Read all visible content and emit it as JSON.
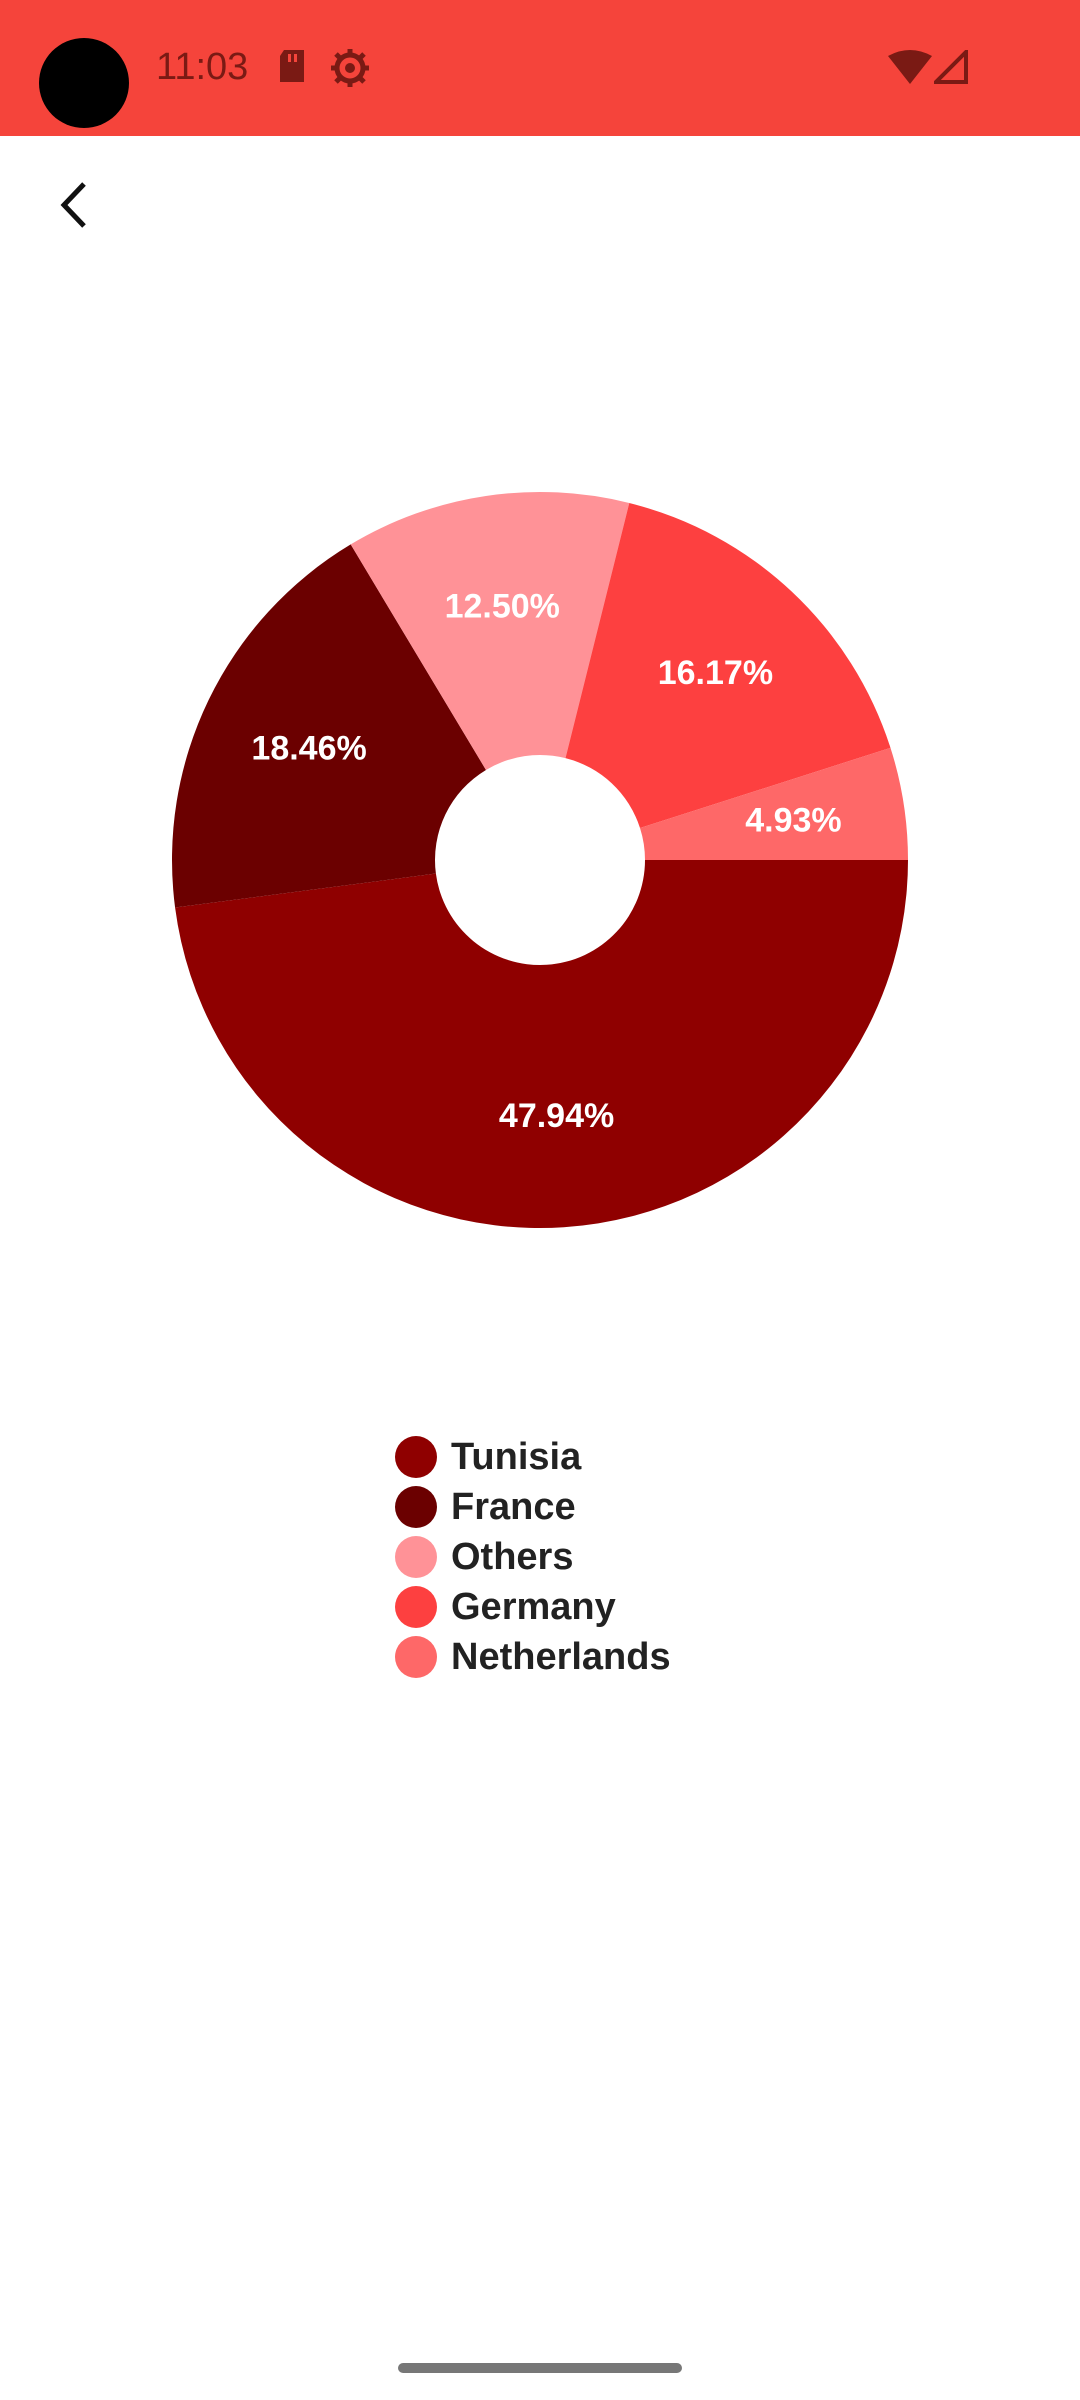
{
  "status_bar": {
    "time": "11:03",
    "color": "#f5443b",
    "icons": [
      "camera-cutout",
      "sd-card-icon",
      "settings-gear-icon",
      "wifi-icon",
      "cell-signal-icon"
    ]
  },
  "toolbar": {
    "back_icon": "chevron-left-icon"
  },
  "chart_data": {
    "type": "pie",
    "donut": true,
    "start_angle_deg": 0,
    "direction": "clockwise",
    "series": [
      {
        "name": "Tunisia",
        "value": 47.94,
        "label": "47.94%",
        "color": "#8f0000"
      },
      {
        "name": "France",
        "value": 18.46,
        "label": "18.46%",
        "color": "#6b0000"
      },
      {
        "name": "Others",
        "value": 12.5,
        "label": "12.50%",
        "color": "#ff9297"
      },
      {
        "name": "Germany",
        "value": 16.17,
        "label": "16.17%",
        "color": "#fd4040"
      },
      {
        "name": "Netherlands",
        "value": 4.93,
        "label": "4.93%",
        "color": "#fe6868"
      }
    ],
    "legend_position": "bottom"
  }
}
